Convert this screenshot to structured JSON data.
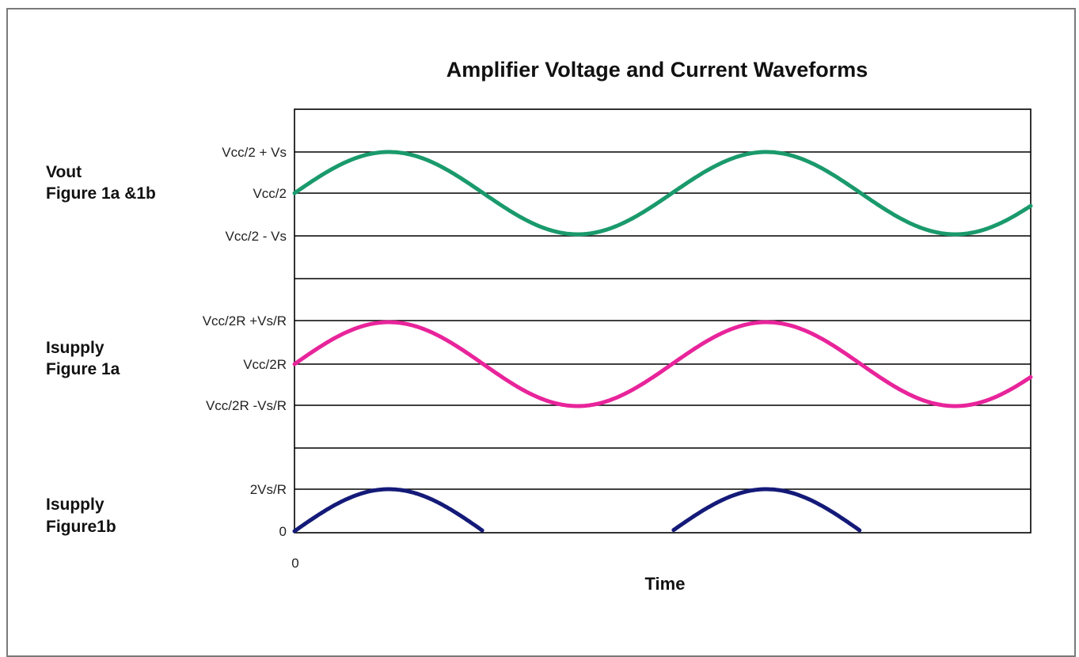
{
  "chart_data": {
    "type": "line",
    "title": "Amplifier Voltage and Current Waveforms",
    "xlabel": "Time",
    "x_ticks": [
      "0"
    ],
    "x_range": [
      0,
      1.95
    ],
    "grid": true,
    "legend": "none",
    "groups": [
      {
        "label_lines": [
          "Vout",
          "Figure 1a &1b"
        ],
        "y_ticks": [
          "Vcc/2 + Vs",
          "Vcc/2",
          "Vcc/2 - Vs"
        ],
        "series": [
          {
            "color": "#1a9a6c",
            "waveform": "sine",
            "cycles": 1.95,
            "min": -1,
            "max": 1
          }
        ]
      },
      {
        "label_lines": [
          "Isupply",
          "Figure 1a"
        ],
        "y_ticks": [
          "Vcc/2R +Vs/R",
          "Vcc/2R",
          "Vcc/2R -Vs/R"
        ],
        "series": [
          {
            "color": "#e8249b",
            "waveform": "sine",
            "cycles": 1.95,
            "min": -1,
            "max": 1
          }
        ]
      },
      {
        "label_lines": [
          "Isupply",
          "Figure1b"
        ],
        "y_ticks": [
          "2Vs/R",
          "0"
        ],
        "series": [
          {
            "color": "#141a78",
            "waveform": "half-wave sine",
            "cycles": 1.95,
            "min": 0,
            "max": 1
          }
        ]
      }
    ]
  }
}
